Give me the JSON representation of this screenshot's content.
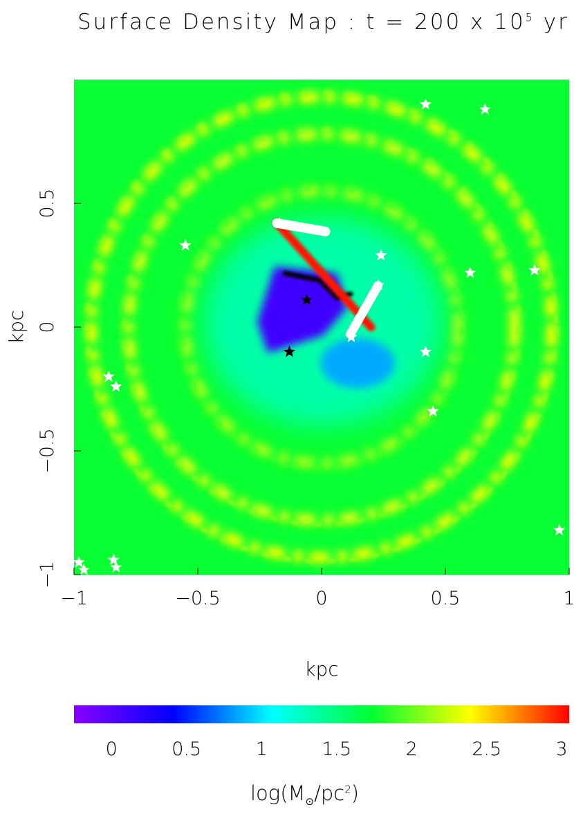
{
  "title": {
    "prefix": "Surface Density Map : t = 200 x 10",
    "exponent": "5",
    "suffix": " yr"
  },
  "colorbar_label": {
    "prefix": "log(M",
    "subscript": "⊙",
    "middle": "/pc",
    "superscript": "2",
    "suffix": ")"
  },
  "chart_data": {
    "type": "heatmap",
    "title": "Surface Density Map : t = 200 x 10^5 yr",
    "xlabel": "kpc",
    "ylabel": "kpc",
    "xlim": [
      -1,
      1
    ],
    "ylim": [
      -1,
      1
    ],
    "x_ticks": [
      "−1",
      "−0.5",
      "0",
      "0.5",
      "1"
    ],
    "x_tick_values": [
      -1,
      -0.5,
      0,
      0.5,
      1
    ],
    "y_ticks": [
      "−1",
      "−0.5",
      "0",
      "0.5"
    ],
    "y_tick_values": [
      -1,
      -0.5,
      0,
      0.5
    ],
    "colorbar": {
      "label": "log(M⊙/pc²)",
      "range": [
        -0.25,
        3.05
      ],
      "ticks": [
        "0",
        "0.5",
        "1",
        "1.5",
        "2",
        "2.5",
        "3"
      ],
      "tick_values": [
        0,
        0.5,
        1,
        1.5,
        2,
        2.5,
        3
      ],
      "colors": [
        "#8800ff",
        "#0000ff",
        "#00ffff",
        "#00ff33",
        "#ffff00",
        "#ff0000"
      ]
    },
    "background_level": 1.75,
    "rings": [
      {
        "radius": 0.93,
        "level": 2.35
      },
      {
        "radius": 0.78,
        "level": 2.3
      },
      {
        "radius": 0.55,
        "level": 2.15
      }
    ],
    "central_low_density_region": {
      "center": [
        -0.05,
        0.05
      ],
      "level": 0.1
    },
    "dense_filament": {
      "from": [
        -0.18,
        0.42
      ],
      "to": [
        0.2,
        0.0
      ],
      "level": 3.0
    },
    "stars": {
      "white": [
        [
          0.42,
          0.9
        ],
        [
          0.66,
          0.88
        ],
        [
          -0.55,
          0.33
        ],
        [
          -0.17,
          0.42
        ],
        [
          0.24,
          0.29
        ],
        [
          0.6,
          0.22
        ],
        [
          0.86,
          0.23
        ],
        [
          0.42,
          -0.1
        ],
        [
          0.45,
          -0.34
        ],
        [
          -0.86,
          -0.2
        ],
        [
          -0.83,
          -0.24
        ],
        [
          -0.84,
          -0.94
        ],
        [
          -0.83,
          -0.97
        ],
        [
          -0.98,
          -0.95
        ],
        [
          -0.96,
          -0.98
        ],
        [
          0.96,
          -0.82
        ],
        [
          0.12,
          -0.04
        ],
        [
          0.23,
          0.17
        ]
      ],
      "black": [
        [
          -0.06,
          0.11
        ],
        [
          -0.13,
          -0.1
        ]
      ]
    }
  }
}
